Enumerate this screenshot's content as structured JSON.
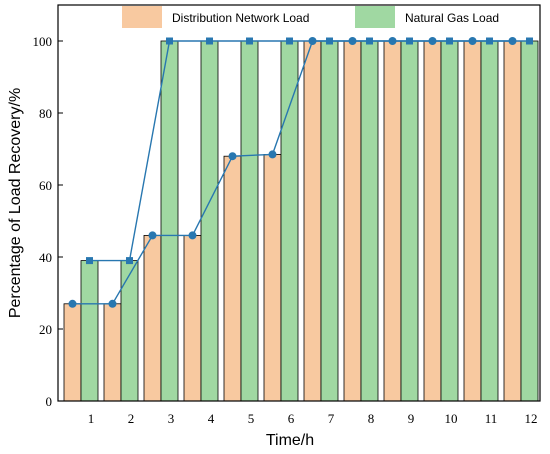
{
  "chart_data": {
    "type": "bar",
    "xlabel": "Time/h",
    "ylabel": "Percentage of  Load Recovery/%",
    "ylim": [
      0,
      110
    ],
    "yticks": [
      0,
      20,
      40,
      60,
      80,
      100
    ],
    "categories": [
      "1",
      "2",
      "3",
      "4",
      "5",
      "6",
      "7",
      "8",
      "9",
      "10",
      "11",
      "12"
    ],
    "legend_position": "top",
    "grid": false,
    "series": [
      {
        "name": "Distribution Network Load",
        "values": [
          27,
          27,
          46,
          46,
          68,
          68.5,
          100,
          100,
          100,
          100,
          100,
          100
        ],
        "bar_color": "#F8C9A0",
        "line_color": "#2877B0",
        "marker": "circle"
      },
      {
        "name": "Natural Gas Load",
        "values": [
          39,
          39,
          100,
          100,
          100,
          100,
          100,
          100,
          100,
          100,
          100,
          100
        ],
        "bar_color": "#A0D8A2",
        "line_color": "#2877B0",
        "marker": "square"
      }
    ]
  }
}
